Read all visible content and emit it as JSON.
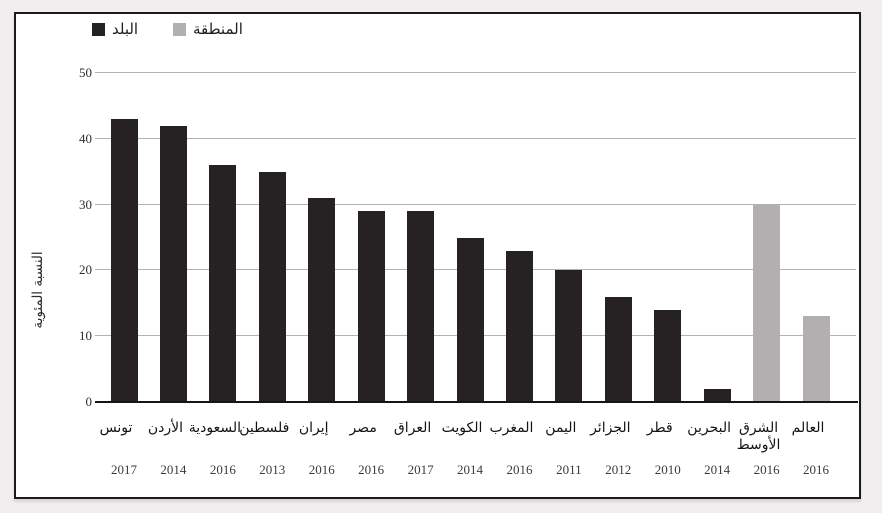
{
  "legend": {
    "items": [
      {
        "label": "البلد",
        "color": "#262223",
        "key": "country"
      },
      {
        "label": "المنطقة",
        "color": "#b1afaf",
        "key": "region"
      }
    ]
  },
  "y_axis": {
    "title": "النسبة المئوية",
    "ticks": [
      0,
      10,
      20,
      30,
      40,
      50
    ]
  },
  "chart_data": {
    "type": "bar",
    "title": "",
    "xlabel": "",
    "ylabel": "النسبة المئوية",
    "ylim": [
      0,
      50
    ],
    "grid": "horizontal",
    "legend_position": "top-left",
    "colors": {
      "country": "#262223",
      "region": "#b1afaf"
    },
    "categories": [
      "تونس",
      "الأردن",
      "السعودية",
      "فلسطين",
      "إيران",
      "مصر",
      "العراق",
      "الكويت",
      "المغرب",
      "اليمن",
      "الجزائر",
      "قطر",
      "البحرين",
      "الشرق الأوسط",
      "العالم"
    ],
    "years": [
      "2017",
      "2014",
      "2016",
      "2013",
      "2016",
      "2016",
      "2017",
      "2014",
      "2016",
      "2011",
      "2012",
      "2010",
      "2014",
      "2016",
      "2016"
    ],
    "values": [
      43,
      42,
      36,
      35,
      31,
      29,
      29,
      25,
      23,
      20,
      16,
      14,
      2,
      30,
      13
    ],
    "series": [
      "country",
      "country",
      "country",
      "country",
      "country",
      "country",
      "country",
      "country",
      "country",
      "country",
      "country",
      "country",
      "country",
      "region",
      "region"
    ]
  }
}
